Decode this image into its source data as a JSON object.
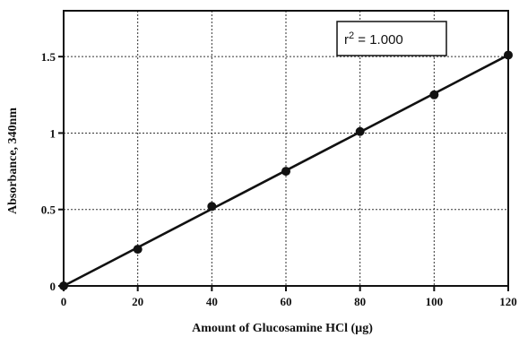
{
  "chart_data": {
    "type": "scatter",
    "xlabel": "Amount of Glucosamine HCl (µg)",
    "ylabel": "Absorbance,  340nm",
    "xlim": [
      0,
      120
    ],
    "ylim": [
      0,
      1.8
    ],
    "xticks": [
      0,
      20,
      40,
      60,
      80,
      100,
      120
    ],
    "xtick_labels": [
      "0",
      "20",
      "40",
      "60",
      "80",
      "100",
      "120"
    ],
    "yticks": [
      0,
      0.5,
      1,
      1.5
    ],
    "ytick_labels": [
      "0",
      "0.5",
      "1",
      "1.5"
    ],
    "grid": true,
    "series": [
      {
        "x": [
          0,
          20,
          40,
          60,
          80,
          100,
          120
        ],
        "y": [
          0.0,
          0.24,
          0.52,
          0.75,
          1.01,
          1.25,
          1.51
        ],
        "marker": "circle",
        "color": "#111111"
      }
    ],
    "fit_line": {
      "x": [
        0,
        120
      ],
      "y": [
        0.0,
        1.51
      ],
      "color": "#111111"
    },
    "annotation": {
      "base": "r",
      "sup": "2",
      "text": " = 1.000",
      "position": "top-right"
    }
  }
}
